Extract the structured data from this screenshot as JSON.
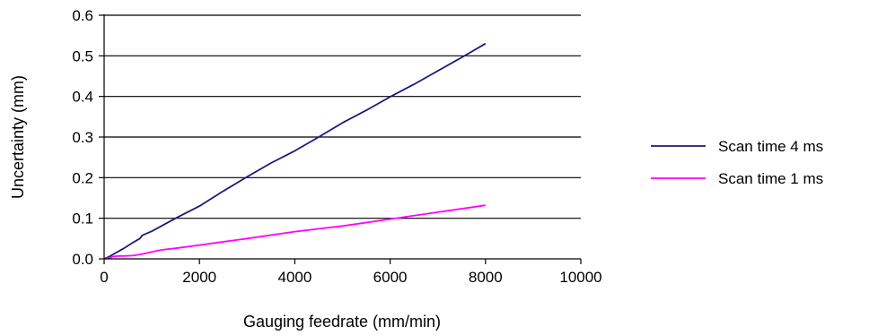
{
  "chart_data": {
    "type": "line",
    "title": "",
    "xlabel": "Gauging feedrate (mm/min)",
    "ylabel": "Uncertainty (mm)",
    "xlim": [
      0,
      10000
    ],
    "ylim": [
      0,
      0.6
    ],
    "xticks": [
      0,
      2000,
      4000,
      6000,
      8000,
      10000
    ],
    "xtick_labels": [
      "0",
      "2000",
      "4000",
      "6000",
      "8000",
      "10000"
    ],
    "yticks": [
      0,
      0.1,
      0.2,
      0.3,
      0.4,
      0.5,
      0.6
    ],
    "ytick_labels": [
      "0.0",
      "0.1",
      "0.2",
      "0.3",
      "0.4",
      "0.5",
      "0.6"
    ],
    "grid": "horizontal",
    "legend_position": "right",
    "series": [
      {
        "name": "Scan time 4 ms",
        "color": "#1a1a7a",
        "x": [
          0,
          100,
          200,
          400,
          600,
          750,
          800,
          1000,
          1500,
          2000,
          2500,
          3000,
          3500,
          4000,
          4500,
          5000,
          5500,
          6000,
          6500,
          7000,
          7500,
          8000
        ],
        "y": [
          0.0,
          0.005,
          0.012,
          0.025,
          0.04,
          0.05,
          0.058,
          0.068,
          0.1,
          0.13,
          0.167,
          0.202,
          0.236,
          0.266,
          0.3,
          0.335,
          0.366,
          0.399,
          0.43,
          0.463,
          0.496,
          0.53
        ]
      },
      {
        "name": "Scan time 1 ms",
        "color": "#ff00ff",
        "x": [
          0,
          100,
          200,
          300,
          400,
          600,
          800,
          1000,
          1200,
          1500,
          2000,
          3000,
          4000,
          5000,
          6000,
          7000,
          8000
        ],
        "y": [
          0.0,
          0.002,
          0.006,
          0.007,
          0.007,
          0.008,
          0.012,
          0.017,
          0.022,
          0.026,
          0.034,
          0.05,
          0.067,
          0.081,
          0.098,
          0.115,
          0.132
        ]
      }
    ]
  }
}
